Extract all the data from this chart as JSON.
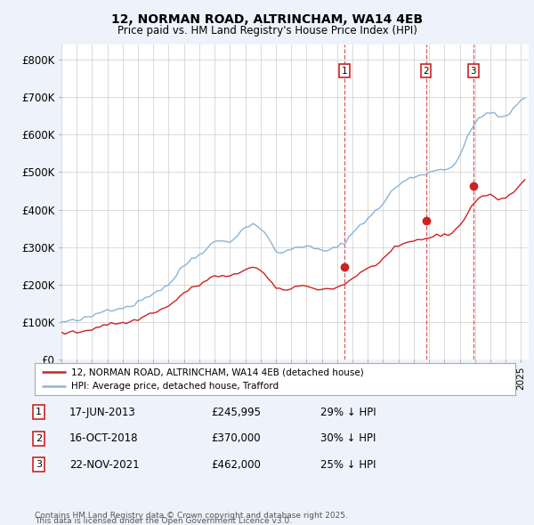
{
  "title_line1": "12, NORMAN ROAD, ALTRINCHAM, WA14 4EB",
  "title_line2": "Price paid vs. HM Land Registry's House Price Index (HPI)",
  "ylabel_ticks": [
    "£0",
    "£100K",
    "£200K",
    "£300K",
    "£400K",
    "£500K",
    "£600K",
    "£700K",
    "£800K"
  ],
  "ytick_values": [
    0,
    100000,
    200000,
    300000,
    400000,
    500000,
    600000,
    700000,
    800000
  ],
  "ylim": [
    0,
    840000
  ],
  "xlim_start": 1995.0,
  "xlim_end": 2025.5,
  "background_color": "#eef2fa",
  "plot_bg_color": "#ffffff",
  "hpi_color": "#8ab4d8",
  "price_color": "#cc2222",
  "grid_color": "#cccccc",
  "transaction_color": "#cc2222",
  "legend_label_red": "12, NORMAN ROAD, ALTRINCHAM, WA14 4EB (detached house)",
  "legend_label_blue": "HPI: Average price, detached house, Trafford",
  "transactions": [
    {
      "num": 1,
      "date": "17-JUN-2013",
      "price": 245995,
      "pct": "29% ↓ HPI",
      "year": 2013.46
    },
    {
      "num": 2,
      "date": "16-OCT-2018",
      "price": 370000,
      "pct": "30% ↓ HPI",
      "year": 2018.79
    },
    {
      "num": 3,
      "date": "22-NOV-2021",
      "price": 462000,
      "pct": "25% ↓ HPI",
      "year": 2021.89
    }
  ],
  "footnote_line1": "Contains HM Land Registry data © Crown copyright and database right 2025.",
  "footnote_line2": "This data is licensed under the Open Government Licence v3.0.",
  "hpi_base_curve": [
    [
      1995.0,
      100000
    ],
    [
      1995.25,
      101000
    ],
    [
      1995.5,
      102500
    ],
    [
      1995.75,
      103000
    ],
    [
      1996.0,
      104000
    ],
    [
      1996.25,
      106000
    ],
    [
      1996.5,
      109000
    ],
    [
      1996.75,
      112000
    ],
    [
      1997.0,
      116000
    ],
    [
      1997.25,
      121000
    ],
    [
      1997.5,
      126000
    ],
    [
      1997.75,
      130000
    ],
    [
      1998.0,
      133000
    ],
    [
      1998.25,
      135000
    ],
    [
      1998.5,
      137000
    ],
    [
      1998.75,
      138000
    ],
    [
      1999.0,
      139000
    ],
    [
      1999.25,
      141000
    ],
    [
      1999.5,
      144000
    ],
    [
      1999.75,
      148000
    ],
    [
      2000.0,
      153000
    ],
    [
      2000.25,
      159000
    ],
    [
      2000.5,
      166000
    ],
    [
      2000.75,
      172000
    ],
    [
      2001.0,
      178000
    ],
    [
      2001.25,
      183000
    ],
    [
      2001.5,
      188000
    ],
    [
      2001.75,
      194000
    ],
    [
      2002.0,
      201000
    ],
    [
      2002.25,
      212000
    ],
    [
      2002.5,
      225000
    ],
    [
      2002.75,
      238000
    ],
    [
      2003.0,
      250000
    ],
    [
      2003.25,
      260000
    ],
    [
      2003.5,
      268000
    ],
    [
      2003.75,
      274000
    ],
    [
      2004.0,
      280000
    ],
    [
      2004.25,
      290000
    ],
    [
      2004.5,
      300000
    ],
    [
      2004.75,
      308000
    ],
    [
      2005.0,
      313000
    ],
    [
      2005.25,
      316000
    ],
    [
      2005.5,
      317000
    ],
    [
      2005.75,
      316000
    ],
    [
      2006.0,
      317000
    ],
    [
      2006.25,
      323000
    ],
    [
      2006.5,
      332000
    ],
    [
      2006.75,
      342000
    ],
    [
      2007.0,
      352000
    ],
    [
      2007.25,
      360000
    ],
    [
      2007.5,
      362000
    ],
    [
      2007.75,
      358000
    ],
    [
      2008.0,
      350000
    ],
    [
      2008.25,
      338000
    ],
    [
      2008.5,
      322000
    ],
    [
      2008.75,
      305000
    ],
    [
      2009.0,
      291000
    ],
    [
      2009.25,
      285000
    ],
    [
      2009.5,
      285000
    ],
    [
      2009.75,
      289000
    ],
    [
      2010.0,
      295000
    ],
    [
      2010.25,
      300000
    ],
    [
      2010.5,
      303000
    ],
    [
      2010.75,
      303000
    ],
    [
      2011.0,
      301000
    ],
    [
      2011.25,
      299000
    ],
    [
      2011.5,
      296000
    ],
    [
      2011.75,
      293000
    ],
    [
      2012.0,
      291000
    ],
    [
      2012.25,
      291000
    ],
    [
      2012.5,
      292000
    ],
    [
      2012.75,
      295000
    ],
    [
      2013.0,
      299000
    ],
    [
      2013.25,
      306000
    ],
    [
      2013.5,
      315000
    ],
    [
      2013.75,
      325000
    ],
    [
      2014.0,
      337000
    ],
    [
      2014.25,
      349000
    ],
    [
      2014.5,
      360000
    ],
    [
      2014.75,
      369000
    ],
    [
      2015.0,
      377000
    ],
    [
      2015.25,
      385000
    ],
    [
      2015.5,
      394000
    ],
    [
      2015.75,
      405000
    ],
    [
      2016.0,
      418000
    ],
    [
      2016.25,
      432000
    ],
    [
      2016.5,
      445000
    ],
    [
      2016.75,
      456000
    ],
    [
      2017.0,
      465000
    ],
    [
      2017.25,
      472000
    ],
    [
      2017.5,
      478000
    ],
    [
      2017.75,
      483000
    ],
    [
      2018.0,
      487000
    ],
    [
      2018.25,
      491000
    ],
    [
      2018.5,
      494000
    ],
    [
      2018.75,
      497000
    ],
    [
      2019.0,
      499000
    ],
    [
      2019.25,
      502000
    ],
    [
      2019.5,
      505000
    ],
    [
      2019.75,
      508000
    ],
    [
      2020.0,
      510000
    ],
    [
      2020.25,
      510000
    ],
    [
      2020.5,
      515000
    ],
    [
      2020.75,
      528000
    ],
    [
      2021.0,
      545000
    ],
    [
      2021.25,
      566000
    ],
    [
      2021.5,
      590000
    ],
    [
      2021.75,
      612000
    ],
    [
      2022.0,
      630000
    ],
    [
      2022.25,
      645000
    ],
    [
      2022.5,
      654000
    ],
    [
      2022.75,
      658000
    ],
    [
      2023.0,
      657000
    ],
    [
      2023.25,
      652000
    ],
    [
      2023.5,
      648000
    ],
    [
      2023.75,
      647000
    ],
    [
      2024.0,
      650000
    ],
    [
      2024.25,
      658000
    ],
    [
      2024.5,
      668000
    ],
    [
      2024.75,
      678000
    ],
    [
      2025.0,
      690000
    ],
    [
      2025.25,
      700000
    ]
  ],
  "price_base_curve": [
    [
      1995.0,
      70000
    ],
    [
      1995.25,
      71000
    ],
    [
      1995.5,
      72000
    ],
    [
      1995.75,
      72500
    ],
    [
      1996.0,
      73000
    ],
    [
      1996.25,
      74500
    ],
    [
      1996.5,
      76500
    ],
    [
      1996.75,
      79000
    ],
    [
      1997.0,
      82000
    ],
    [
      1997.25,
      85500
    ],
    [
      1997.5,
      89000
    ],
    [
      1997.75,
      92000
    ],
    [
      1998.0,
      94000
    ],
    [
      1998.25,
      95500
    ],
    [
      1998.5,
      96500
    ],
    [
      1998.75,
      97000
    ],
    [
      1999.0,
      97500
    ],
    [
      1999.25,
      99000
    ],
    [
      1999.5,
      101000
    ],
    [
      1999.75,
      104000
    ],
    [
      2000.0,
      107500
    ],
    [
      2000.25,
      112000
    ],
    [
      2000.5,
      117000
    ],
    [
      2000.75,
      122000
    ],
    [
      2001.0,
      126500
    ],
    [
      2001.25,
      130000
    ],
    [
      2001.5,
      133500
    ],
    [
      2001.75,
      137500
    ],
    [
      2002.0,
      142500
    ],
    [
      2002.25,
      150500
    ],
    [
      2002.5,
      160000
    ],
    [
      2002.75,
      169500
    ],
    [
      2003.0,
      178000
    ],
    [
      2003.25,
      184500
    ],
    [
      2003.5,
      190000
    ],
    [
      2003.75,
      194500
    ],
    [
      2004.0,
      199000
    ],
    [
      2004.25,
      205500
    ],
    [
      2004.5,
      213000
    ],
    [
      2004.75,
      218500
    ],
    [
      2005.0,
      221500
    ],
    [
      2005.25,
      222500
    ],
    [
      2005.5,
      222500
    ],
    [
      2005.75,
      221000
    ],
    [
      2006.0,
      221500
    ],
    [
      2006.25,
      224500
    ],
    [
      2006.5,
      229500
    ],
    [
      2006.75,
      235500
    ],
    [
      2007.0,
      241500
    ],
    [
      2007.25,
      246000
    ],
    [
      2007.5,
      246500
    ],
    [
      2007.75,
      243500
    ],
    [
      2008.0,
      237000
    ],
    [
      2008.25,
      227500
    ],
    [
      2008.5,
      215500
    ],
    [
      2008.75,
      202500
    ],
    [
      2009.0,
      191000
    ],
    [
      2009.25,
      185000
    ],
    [
      2009.5,
      184500
    ],
    [
      2009.75,
      187000
    ],
    [
      2010.0,
      191000
    ],
    [
      2010.25,
      194500
    ],
    [
      2010.5,
      196500
    ],
    [
      2010.75,
      196500
    ],
    [
      2011.0,
      195000
    ],
    [
      2011.25,
      193000
    ],
    [
      2011.5,
      191000
    ],
    [
      2011.75,
      189000
    ],
    [
      2012.0,
      188000
    ],
    [
      2012.25,
      188000
    ],
    [
      2012.5,
      188500
    ],
    [
      2012.75,
      190500
    ],
    [
      2013.0,
      193000
    ],
    [
      2013.25,
      197000
    ],
    [
      2013.5,
      202500
    ],
    [
      2013.75,
      209000
    ],
    [
      2014.0,
      216500
    ],
    [
      2014.25,
      224500
    ],
    [
      2014.5,
      231500
    ],
    [
      2014.75,
      237000
    ],
    [
      2015.0,
      242000
    ],
    [
      2015.25,
      247000
    ],
    [
      2015.5,
      253000
    ],
    [
      2015.75,
      260500
    ],
    [
      2016.0,
      269000
    ],
    [
      2016.25,
      278500
    ],
    [
      2016.5,
      287500
    ],
    [
      2016.75,
      295000
    ],
    [
      2017.0,
      301000
    ],
    [
      2017.25,
      306000
    ],
    [
      2017.5,
      310000
    ],
    [
      2017.75,
      313500
    ],
    [
      2018.0,
      316500
    ],
    [
      2018.25,
      319000
    ],
    [
      2018.5,
      321000
    ],
    [
      2018.75,
      323000
    ],
    [
      2019.0,
      325000
    ],
    [
      2019.25,
      327500
    ],
    [
      2019.5,
      330000
    ],
    [
      2019.75,
      332500
    ],
    [
      2020.0,
      334000
    ],
    [
      2020.25,
      334500
    ],
    [
      2020.5,
      338000
    ],
    [
      2020.75,
      346500
    ],
    [
      2021.0,
      358000
    ],
    [
      2021.25,
      373000
    ],
    [
      2021.5,
      390000
    ],
    [
      2021.75,
      407000
    ],
    [
      2022.0,
      421000
    ],
    [
      2022.25,
      430500
    ],
    [
      2022.5,
      436500
    ],
    [
      2022.75,
      438500
    ],
    [
      2023.0,
      437000
    ],
    [
      2023.25,
      433000
    ],
    [
      2023.5,
      430000
    ],
    [
      2023.75,
      429500
    ],
    [
      2024.0,
      432000
    ],
    [
      2024.25,
      438500
    ],
    [
      2024.5,
      447000
    ],
    [
      2024.75,
      457000
    ],
    [
      2025.0,
      468000
    ],
    [
      2025.25,
      478000
    ]
  ]
}
